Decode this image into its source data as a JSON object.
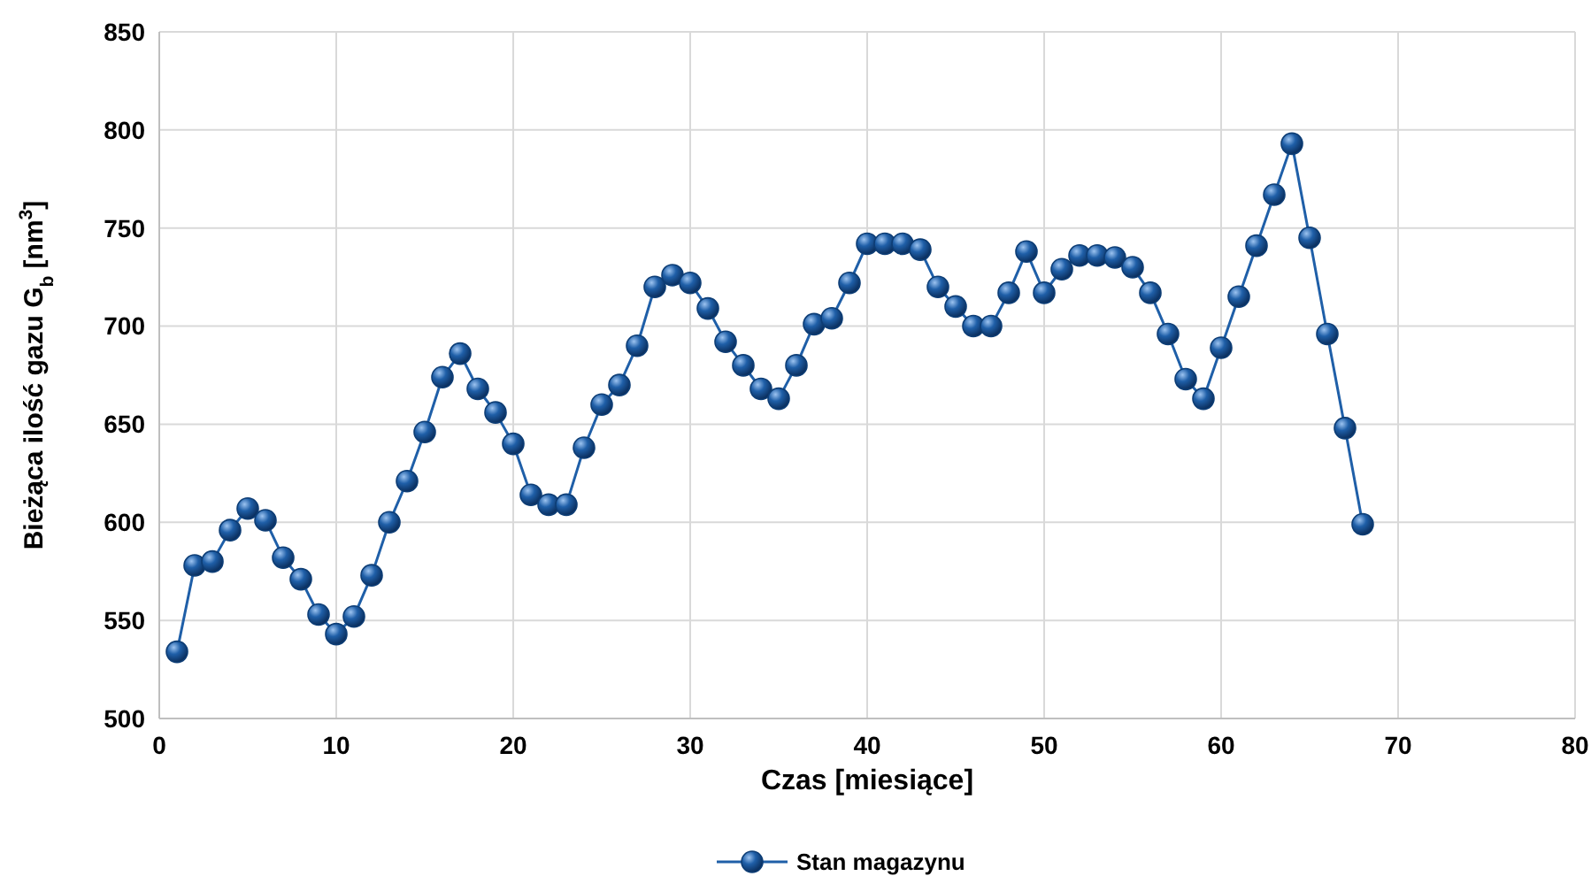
{
  "chart_data": {
    "type": "line",
    "xlabel": "Czas [miesiące]",
    "ylabel": "Bieżąca ilość gazu G$_{b}$ [nm$^{3}$]",
    "x": [
      1,
      2,
      3,
      4,
      5,
      6,
      7,
      8,
      9,
      10,
      11,
      12,
      13,
      14,
      15,
      16,
      17,
      18,
      19,
      20,
      21,
      22,
      23,
      24,
      25,
      26,
      27,
      28,
      29,
      30,
      31,
      32,
      33,
      34,
      35,
      36,
      37,
      38,
      39,
      40,
      41,
      42,
      43,
      44,
      45,
      46,
      47,
      48,
      49,
      50,
      51,
      52,
      53,
      54,
      55,
      56,
      57,
      58,
      59,
      60,
      61,
      62,
      63,
      64,
      65,
      66,
      67,
      68
    ],
    "series": [
      {
        "name": "Stan magazynu",
        "color": "#1f5fa8",
        "values": [
          534,
          578,
          580,
          596,
          607,
          601,
          582,
          571,
          553,
          543,
          552,
          573,
          600,
          621,
          646,
          674,
          686,
          668,
          656,
          640,
          614,
          609,
          609,
          638,
          660,
          670,
          690,
          720,
          726,
          722,
          709,
          692,
          680,
          668,
          663,
          680,
          701,
          704,
          722,
          742,
          742,
          742,
          739,
          720,
          710,
          700,
          700,
          717,
          738,
          717,
          729,
          736,
          736,
          735,
          730,
          717,
          696,
          673,
          663,
          689,
          715,
          741,
          767,
          793,
          745,
          696,
          648,
          599
        ]
      }
    ],
    "xlim": [
      0,
      80
    ],
    "xticks": [
      0,
      10,
      20,
      30,
      40,
      50,
      60,
      70,
      80
    ],
    "ylim": [
      500,
      850
    ],
    "yticks": [
      500,
      550,
      600,
      650,
      700,
      750,
      800,
      850
    ],
    "grid": true,
    "legend": "bottom",
    "marker": "circle",
    "line_style": "solid"
  }
}
